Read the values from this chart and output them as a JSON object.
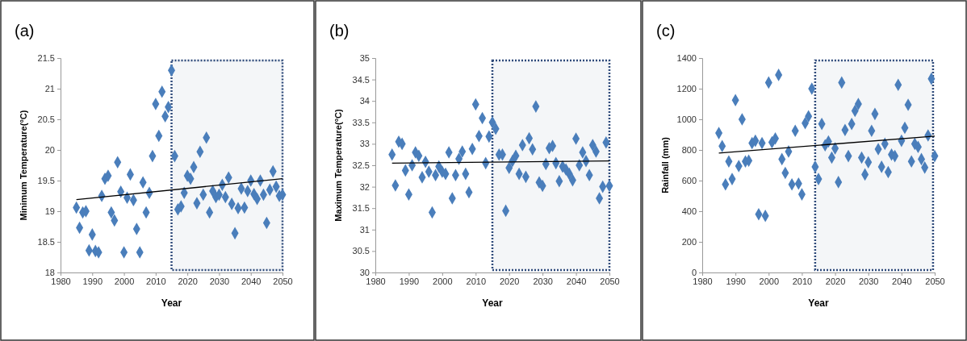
{
  "chart_data": [
    {
      "type": "scatter",
      "title": "(a)",
      "xlabel": "Year",
      "ylabel": "Minimum Temperature(°C)",
      "xlim": [
        1980,
        2050
      ],
      "xticks": [
        1980,
        1990,
        2000,
        2010,
        2020,
        2030,
        2040,
        2050
      ],
      "ylim": [
        18,
        21.5
      ],
      "yticks": [
        18,
        18.5,
        19,
        19.5,
        20,
        20.5,
        21,
        21.5
      ],
      "grid": false,
      "bands": [
        {
          "axis": "x",
          "from": 2015,
          "to": 2050,
          "color": "#2e4a7a"
        }
      ],
      "series": [
        {
          "marker": "diamond",
          "color": "#4a7ebb",
          "x": [
            1985,
            1986,
            1987,
            1988,
            1989,
            1990,
            1991,
            1992,
            1993,
            1994,
            1995,
            1996,
            1997,
            1998,
            1999,
            2000,
            2001,
            2002,
            2003,
            2004,
            2005,
            2006,
            2007,
            2008,
            2009,
            2010,
            2011,
            2012,
            2013,
            2014,
            2015,
            2016,
            2017,
            2018,
            2019,
            2020,
            2021,
            2022,
            2023,
            2024,
            2025,
            2026,
            2027,
            2028,
            2029,
            2030,
            2031,
            2032,
            2033,
            2034,
            2035,
            2036,
            2037,
            2038,
            2039,
            2040,
            2041,
            2042,
            2043,
            2044,
            2045,
            2046,
            2047,
            2048,
            2049,
            2050
          ],
          "values": [
            19.06,
            18.73,
            18.98,
            19.0,
            18.36,
            18.62,
            18.35,
            18.33,
            19.25,
            19.53,
            19.58,
            18.98,
            18.85,
            19.8,
            19.32,
            18.33,
            19.22,
            19.6,
            19.18,
            18.71,
            18.33,
            19.47,
            18.98,
            19.3,
            19.9,
            20.75,
            20.23,
            20.95,
            20.55,
            20.7,
            21.3,
            19.9,
            19.03,
            19.08,
            19.3,
            19.58,
            19.53,
            19.72,
            19.13,
            19.97,
            19.27,
            20.2,
            18.98,
            19.33,
            19.23,
            19.27,
            19.43,
            19.23,
            19.55,
            19.12,
            18.64,
            19.05,
            19.37,
            19.06,
            19.33,
            19.5,
            19.28,
            19.2,
            19.5,
            19.27,
            18.81,
            19.35,
            19.65,
            19.4,
            19.25,
            19.27
          ]
        },
        {
          "type": "line",
          "color": "#000000",
          "x": [
            1985,
            2050
          ],
          "values": [
            19.19,
            19.53
          ]
        }
      ]
    },
    {
      "type": "scatter",
      "title": "(b)",
      "xlabel": "Year",
      "ylabel": "Maximum Temperature(°C)",
      "xlim": [
        1980,
        2050
      ],
      "xticks": [
        1980,
        1990,
        2000,
        2010,
        2020,
        2030,
        2040,
        2050
      ],
      "ylim": [
        30,
        35
      ],
      "yticks": [
        30,
        30.5,
        31,
        31.5,
        32,
        32.5,
        33,
        33.5,
        34,
        34.5,
        35
      ],
      "grid": false,
      "bands": [
        {
          "axis": "x",
          "from": 2015,
          "to": 2050,
          "color": "#2e4a7a"
        }
      ],
      "series": [
        {
          "marker": "diamond",
          "color": "#4a7ebb",
          "x": [
            1985,
            1986,
            1987,
            1988,
            1989,
            1990,
            1991,
            1992,
            1993,
            1994,
            1995,
            1996,
            1997,
            1998,
            1999,
            2000,
            2001,
            2002,
            2003,
            2004,
            2005,
            2006,
            2007,
            2008,
            2009,
            2010,
            2011,
            2012,
            2013,
            2014,
            2015,
            2016,
            2017,
            2018,
            2019,
            2020,
            2021,
            2022,
            2023,
            2024,
            2025,
            2026,
            2027,
            2028,
            2029,
            2030,
            2031,
            2032,
            2033,
            2034,
            2035,
            2036,
            2037,
            2038,
            2039,
            2040,
            2041,
            2042,
            2043,
            2044,
            2045,
            2046,
            2047,
            2048,
            2049,
            2050
          ],
          "values": [
            32.75,
            32.03,
            33.05,
            33.0,
            32.38,
            31.82,
            32.5,
            32.8,
            32.72,
            32.22,
            32.58,
            32.35,
            31.4,
            32.27,
            32.47,
            32.35,
            32.3,
            32.8,
            31.73,
            32.27,
            32.65,
            32.82,
            32.3,
            31.87,
            32.88,
            33.92,
            33.18,
            33.6,
            32.55,
            33.17,
            33.5,
            33.35,
            32.75,
            32.75,
            31.44,
            32.44,
            32.6,
            32.72,
            32.3,
            32.97,
            32.23,
            33.13,
            32.87,
            33.87,
            32.1,
            32.02,
            32.53,
            32.9,
            32.95,
            32.55,
            32.13,
            32.47,
            32.4,
            32.3,
            32.15,
            33.12,
            32.5,
            32.8,
            32.6,
            32.27,
            32.97,
            32.82,
            31.73,
            32.0,
            33.03,
            32.02
          ]
        },
        {
          "type": "line",
          "color": "#000000",
          "x": [
            1985,
            2050
          ],
          "values": [
            32.55,
            32.6
          ]
        }
      ]
    },
    {
      "type": "scatter",
      "title": "(c)",
      "xlabel": "Year",
      "ylabel": "Rainfall (mm)",
      "xlim": [
        1980,
        2050
      ],
      "xticks": [
        1980,
        1990,
        2000,
        2010,
        2020,
        2030,
        2040,
        2050
      ],
      "ylim": [
        0,
        1400
      ],
      "yticks": [
        0,
        200,
        400,
        600,
        800,
        1000,
        1200,
        1400
      ],
      "grid": false,
      "bands": [
        {
          "axis": "x",
          "from": 2014,
          "to": 2049.5,
          "color": "#2e4a7a"
        }
      ],
      "series": [
        {
          "marker": "diamond",
          "color": "#4a7ebb",
          "x": [
            1985,
            1986,
            1987,
            1988,
            1989,
            1990,
            1991,
            1992,
            1993,
            1994,
            1995,
            1996,
            1997,
            1998,
            1999,
            2000,
            2001,
            2002,
            2003,
            2004,
            2005,
            2006,
            2007,
            2008,
            2009,
            2010,
            2011,
            2012,
            2013,
            2014,
            2015,
            2016,
            2017,
            2018,
            2019,
            2020,
            2021,
            2022,
            2023,
            2024,
            2025,
            2026,
            2027,
            2028,
            2029,
            2030,
            2031,
            2032,
            2033,
            2034,
            2035,
            2036,
            2037,
            2038,
            2039,
            2040,
            2041,
            2042,
            2043,
            2044,
            2045,
            2046,
            2047,
            2048,
            2049,
            2050
          ],
          "values": [
            910,
            825,
            575,
            725,
            610,
            1125,
            695,
            1000,
            725,
            730,
            845,
            860,
            380,
            845,
            370,
            1240,
            850,
            875,
            1290,
            740,
            650,
            790,
            575,
            925,
            580,
            510,
            975,
            1020,
            1200,
            690,
            610,
            970,
            830,
            855,
            750,
            810,
            590,
            1240,
            930,
            760,
            970,
            1055,
            1100,
            750,
            640,
            720,
            925,
            1035,
            805,
            690,
            840,
            655,
            770,
            760,
            1225,
            860,
            945,
            1095,
            725,
            840,
            820,
            740,
            685,
            895,
            1265,
            760
          ]
        },
        {
          "type": "line",
          "color": "#000000",
          "x": [
            1985,
            2050
          ],
          "values": [
            780,
            890
          ]
        }
      ]
    }
  ]
}
